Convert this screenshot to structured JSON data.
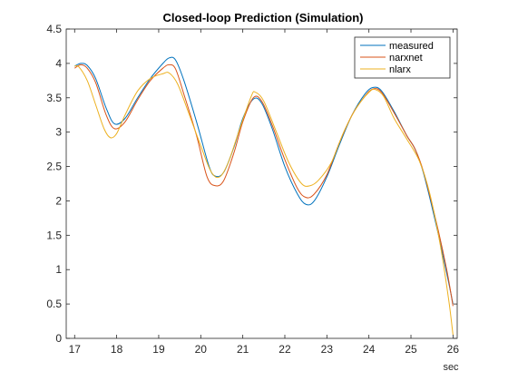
{
  "chart_data": {
    "type": "line",
    "title": "Closed-loop Prediction (Simulation)",
    "xlabel": "sec",
    "ylabel": "",
    "xlim": [
      16.8,
      26.1
    ],
    "ylim": [
      0,
      4.5
    ],
    "xticks": [
      17,
      18,
      19,
      20,
      21,
      22,
      23,
      24,
      25,
      26
    ],
    "yticks": [
      0,
      0.5,
      1,
      1.5,
      2,
      2.5,
      3,
      3.5,
      4,
      4.5
    ],
    "grid": false,
    "legend_position": "top-right",
    "series": [
      {
        "name": "measured",
        "color": "#0072BD",
        "points": [
          [
            17.0,
            3.96
          ],
          [
            17.15,
            4.0
          ],
          [
            17.3,
            3.97
          ],
          [
            17.5,
            3.78
          ],
          [
            17.75,
            3.35
          ],
          [
            17.95,
            3.12
          ],
          [
            18.2,
            3.2
          ],
          [
            18.5,
            3.5
          ],
          [
            18.8,
            3.78
          ],
          [
            19.1,
            4.0
          ],
          [
            19.25,
            4.08
          ],
          [
            19.4,
            4.05
          ],
          [
            19.6,
            3.75
          ],
          [
            19.9,
            3.15
          ],
          [
            20.2,
            2.5
          ],
          [
            20.35,
            2.36
          ],
          [
            20.55,
            2.42
          ],
          [
            20.8,
            2.8
          ],
          [
            21.0,
            3.2
          ],
          [
            21.25,
            3.48
          ],
          [
            21.45,
            3.42
          ],
          [
            21.7,
            3.05
          ],
          [
            22.0,
            2.5
          ],
          [
            22.3,
            2.1
          ],
          [
            22.5,
            1.95
          ],
          [
            22.7,
            2.0
          ],
          [
            23.0,
            2.35
          ],
          [
            23.3,
            2.82
          ],
          [
            23.6,
            3.25
          ],
          [
            23.9,
            3.55
          ],
          [
            24.1,
            3.65
          ],
          [
            24.3,
            3.6
          ],
          [
            24.6,
            3.3
          ],
          [
            24.9,
            2.95
          ],
          [
            25.1,
            2.75
          ],
          [
            25.3,
            2.4
          ],
          [
            25.6,
            1.65
          ],
          [
            25.85,
            0.95
          ],
          [
            26.0,
            0.5
          ]
        ]
      },
      {
        "name": "narxnet",
        "color": "#D95319",
        "points": [
          [
            17.0,
            3.93
          ],
          [
            17.15,
            3.98
          ],
          [
            17.3,
            3.93
          ],
          [
            17.5,
            3.72
          ],
          [
            17.75,
            3.25
          ],
          [
            17.95,
            3.05
          ],
          [
            18.2,
            3.15
          ],
          [
            18.5,
            3.47
          ],
          [
            18.8,
            3.75
          ],
          [
            19.1,
            3.93
          ],
          [
            19.25,
            3.98
          ],
          [
            19.4,
            3.92
          ],
          [
            19.6,
            3.55
          ],
          [
            19.9,
            2.95
          ],
          [
            20.15,
            2.35
          ],
          [
            20.35,
            2.22
          ],
          [
            20.55,
            2.3
          ],
          [
            20.8,
            2.72
          ],
          [
            21.0,
            3.15
          ],
          [
            21.25,
            3.5
          ],
          [
            21.45,
            3.45
          ],
          [
            21.7,
            3.1
          ],
          [
            22.0,
            2.6
          ],
          [
            22.3,
            2.18
          ],
          [
            22.5,
            2.05
          ],
          [
            22.7,
            2.1
          ],
          [
            23.0,
            2.38
          ],
          [
            23.3,
            2.85
          ],
          [
            23.6,
            3.25
          ],
          [
            23.9,
            3.52
          ],
          [
            24.1,
            3.63
          ],
          [
            24.3,
            3.58
          ],
          [
            24.6,
            3.28
          ],
          [
            24.9,
            2.95
          ],
          [
            25.1,
            2.75
          ],
          [
            25.3,
            2.42
          ],
          [
            25.6,
            1.7
          ],
          [
            25.85,
            1.0
          ],
          [
            26.0,
            0.47
          ]
        ]
      },
      {
        "name": "nlarx",
        "color": "#EDB120",
        "points": [
          [
            17.0,
            3.96
          ],
          [
            17.1,
            3.95
          ],
          [
            17.3,
            3.75
          ],
          [
            17.5,
            3.4
          ],
          [
            17.7,
            3.05
          ],
          [
            17.85,
            2.92
          ],
          [
            18.0,
            2.98
          ],
          [
            18.2,
            3.25
          ],
          [
            18.5,
            3.6
          ],
          [
            18.8,
            3.78
          ],
          [
            19.1,
            3.85
          ],
          [
            19.25,
            3.86
          ],
          [
            19.45,
            3.7
          ],
          [
            19.7,
            3.3
          ],
          [
            20.0,
            2.8
          ],
          [
            20.25,
            2.42
          ],
          [
            20.45,
            2.35
          ],
          [
            20.65,
            2.55
          ],
          [
            20.9,
            3.0
          ],
          [
            21.2,
            3.52
          ],
          [
            21.3,
            3.58
          ],
          [
            21.5,
            3.45
          ],
          [
            21.8,
            3.0
          ],
          [
            22.1,
            2.55
          ],
          [
            22.4,
            2.25
          ],
          [
            22.6,
            2.22
          ],
          [
            22.8,
            2.3
          ],
          [
            23.1,
            2.55
          ],
          [
            23.4,
            3.0
          ],
          [
            23.7,
            3.35
          ],
          [
            24.0,
            3.58
          ],
          [
            24.15,
            3.62
          ],
          [
            24.35,
            3.52
          ],
          [
            24.6,
            3.2
          ],
          [
            24.9,
            2.9
          ],
          [
            25.2,
            2.58
          ],
          [
            25.45,
            2.1
          ],
          [
            25.7,
            1.35
          ],
          [
            25.9,
            0.55
          ],
          [
            26.0,
            0.05
          ]
        ]
      }
    ]
  }
}
